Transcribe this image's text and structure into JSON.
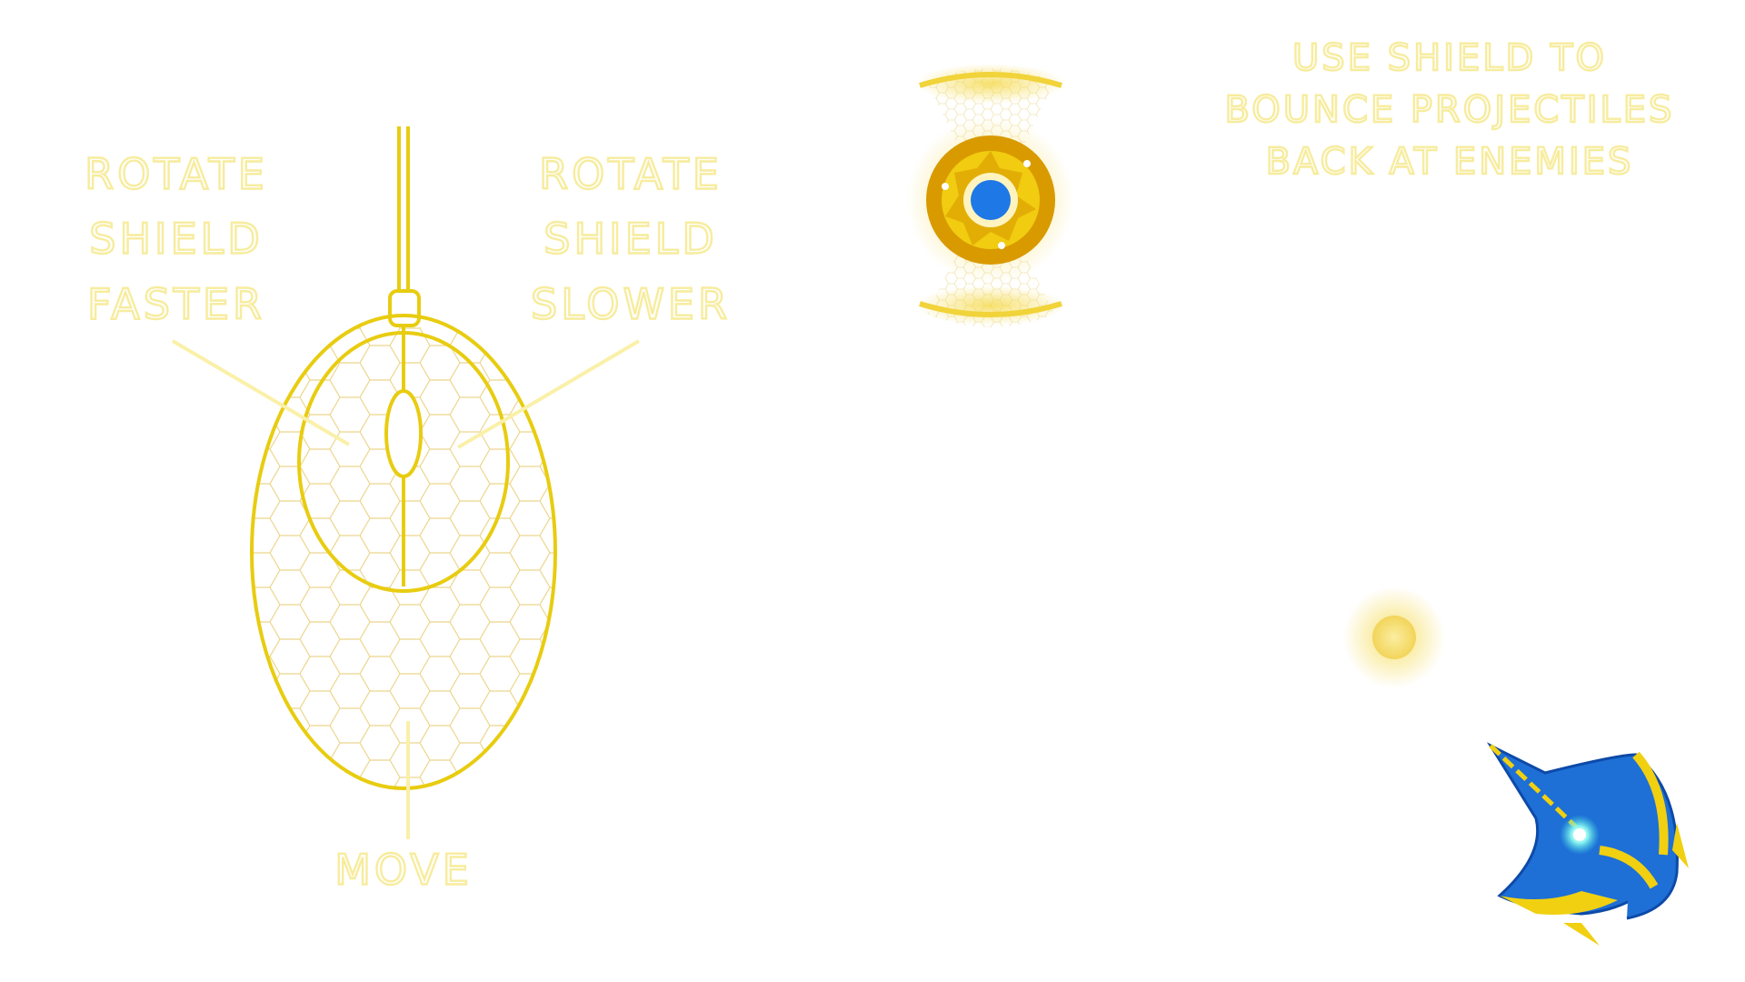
{
  "mouse_labels": {
    "left": [
      "ROTATE",
      "SHIELD",
      "FASTER"
    ],
    "right": [
      "ROTATE",
      "SHIELD",
      "SLOWER"
    ],
    "bottom": "MOVE"
  },
  "hint": [
    "USE SHIELD TO",
    "BOUNCE PROJECTILES",
    "BACK AT ENEMIES"
  ]
}
